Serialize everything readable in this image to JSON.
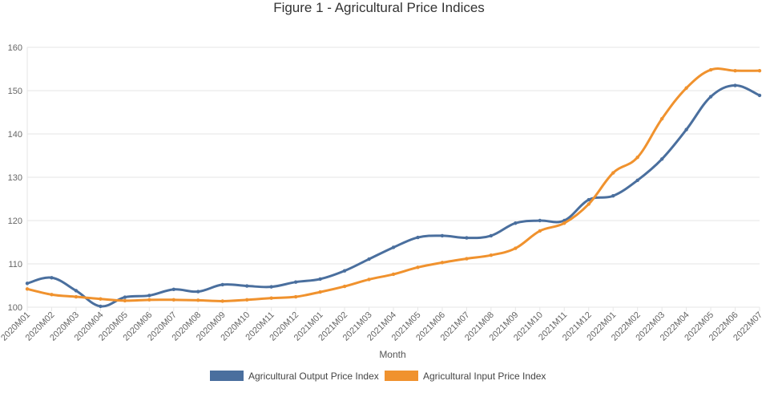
{
  "chart_data": {
    "type": "line",
    "title": "Figure 1 - Agricultural Price Indices",
    "xlabel": "Month",
    "ylabel": "",
    "ylim": [
      100,
      160
    ],
    "yticks": [
      100,
      110,
      120,
      130,
      140,
      150,
      160
    ],
    "grid": true,
    "legend_position": "bottom",
    "categories": [
      "2020M01",
      "2020M02",
      "2020M03",
      "2020M04",
      "2020M05",
      "2020M06",
      "2020M07",
      "2020M08",
      "2020M09",
      "2020M10",
      "2020M11",
      "2020M12",
      "2021M01",
      "2021M02",
      "2021M03",
      "2021M04",
      "2021M05",
      "2021M06",
      "2021M07",
      "2021M08",
      "2021M09",
      "2021M10",
      "2021M11",
      "2021M12",
      "2022M01",
      "2022M02",
      "2022M03",
      "2022M04",
      "2022M05",
      "2022M06",
      "2022M07"
    ],
    "series": [
      {
        "name": "Agricultural Output Price Index",
        "color": "#4a6f9e",
        "values": [
          105.5,
          106.8,
          103.8,
          100.2,
          102.3,
          102.7,
          104.1,
          103.6,
          105.2,
          104.9,
          104.7,
          105.8,
          106.5,
          108.4,
          111.1,
          113.8,
          116.1,
          116.5,
          116.0,
          116.5,
          119.4,
          120.0,
          120.0,
          124.8,
          125.7,
          129.3,
          134.2,
          141.0,
          148.6,
          151.2,
          148.9
        ]
      },
      {
        "name": "Agricultural Input Price Index",
        "color": "#f0922e",
        "values": [
          104.2,
          102.9,
          102.4,
          101.9,
          101.5,
          101.7,
          101.7,
          101.6,
          101.4,
          101.7,
          102.1,
          102.4,
          103.5,
          104.8,
          106.4,
          107.6,
          109.2,
          110.3,
          111.2,
          112.0,
          113.6,
          117.6,
          119.4,
          123.8,
          131.0,
          134.6,
          143.5,
          150.6,
          154.8,
          154.6,
          154.6
        ]
      }
    ]
  }
}
